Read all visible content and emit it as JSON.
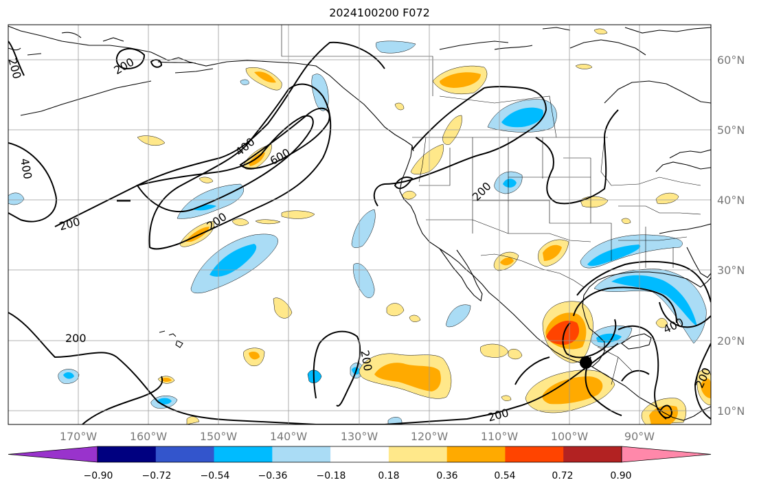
{
  "title": "2024100200 F072",
  "map": {
    "lat_labels": [
      "60°N",
      "50°N",
      "40°N",
      "30°N",
      "20°N",
      "10°N"
    ],
    "lon_labels": [
      "170°W",
      "160°W",
      "150°W",
      "140°W",
      "130°W",
      "120°W",
      "110°W",
      "100°W",
      "90°W"
    ],
    "contour_labels": [
      "200",
      "400",
      "600"
    ],
    "colors": {
      "coast": "#000000",
      "gridline": "#999999",
      "contour": "#000000",
      "marker": "#000000"
    }
  },
  "colorbar": {
    "ticks": [
      "−0.90",
      "−0.72",
      "−0.54",
      "−0.36",
      "−0.18",
      "0.18",
      "0.36",
      "0.54",
      "0.72",
      "0.90"
    ],
    "colors": [
      "#9933cc",
      "#000080",
      "#3355cc",
      "#00bbff",
      "#aadcf5",
      "#ffffff",
      "#ffe88a",
      "#ffaa00",
      "#ff4400",
      "#b22222",
      "#ff88aa"
    ]
  }
}
